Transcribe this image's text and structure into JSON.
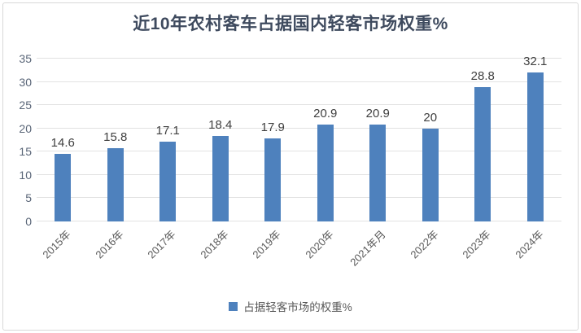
{
  "chart_data": {
    "type": "bar",
    "title": "近10年农村客车占据国内轻客市场权重%",
    "categories": [
      "2015年",
      "2016年",
      "2017年",
      "2018年",
      "2019年",
      "2020年",
      "2021年月",
      "2022年",
      "2023年",
      "2024年"
    ],
    "values": [
      14.6,
      15.8,
      17.1,
      18.4,
      17.9,
      20.9,
      20.9,
      20,
      28.8,
      32.1
    ],
    "xlabel": "",
    "ylabel": "",
    "ylim": [
      0,
      35
    ],
    "yticks": [
      0,
      5,
      10,
      15,
      20,
      25,
      30,
      35
    ],
    "grid": true,
    "legend": [
      "占据轻客市场的权重%"
    ],
    "legend_position": "bottom"
  },
  "colors": {
    "bar": "#4e81bd",
    "gridline": "#e2e2e2",
    "title_text": "#3e4a5e",
    "axis_text": "#595959",
    "data_label_text": "#3f3f3f",
    "frame_border": "#d8d8d8"
  }
}
